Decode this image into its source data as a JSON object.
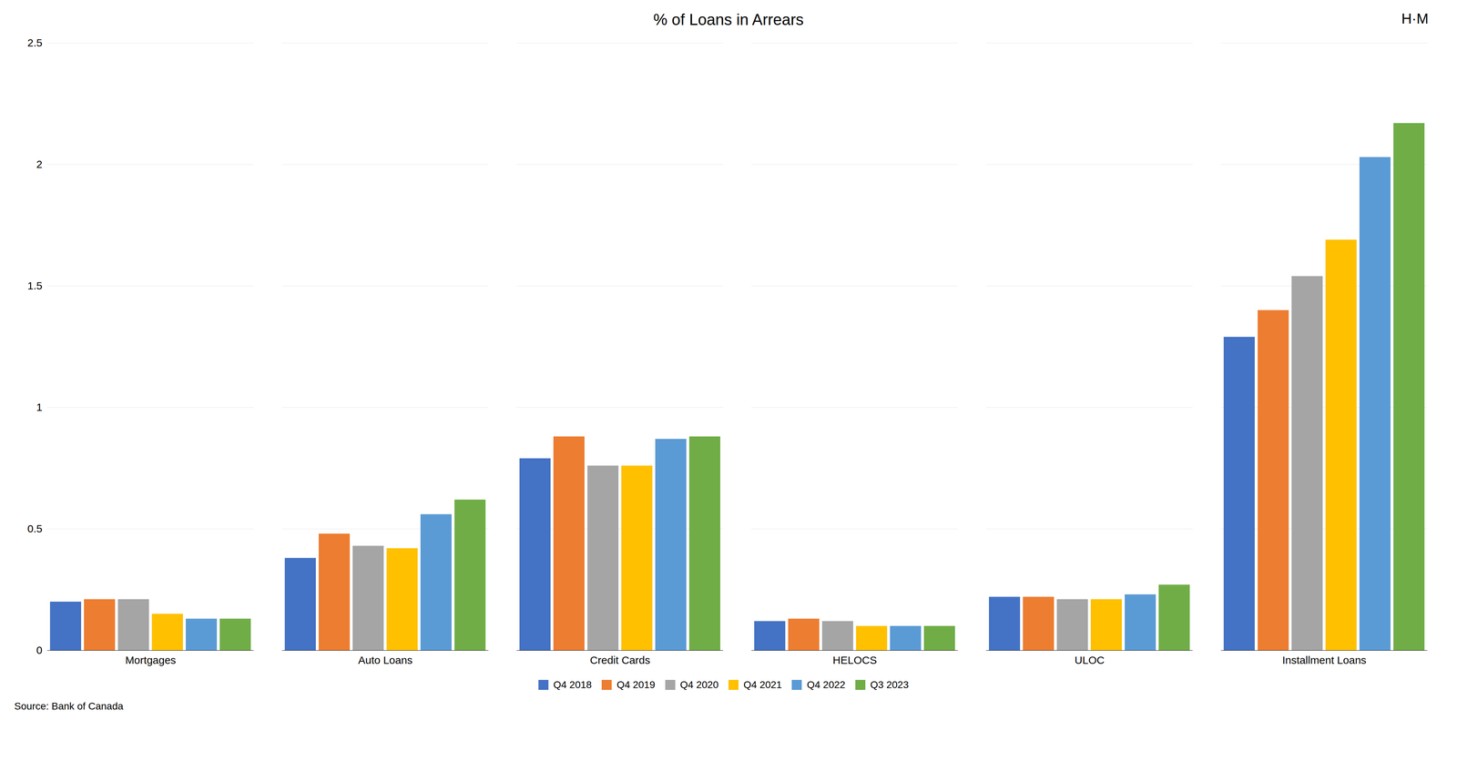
{
  "chart_data": {
    "type": "bar",
    "title": "% of Loans in Arrears",
    "categories": [
      "Mortgages",
      "Auto Loans",
      "Credit Cards",
      "HELOCS",
      "ULOC",
      "Installment Loans"
    ],
    "series": [
      {
        "name": "Q4 2018",
        "color": "#4472C4",
        "values": [
          0.2,
          0.38,
          0.79,
          0.12,
          0.22,
          1.29
        ]
      },
      {
        "name": "Q4 2019",
        "color": "#ED7D31",
        "values": [
          0.21,
          0.48,
          0.88,
          0.13,
          0.22,
          1.4
        ]
      },
      {
        "name": "Q4 2020",
        "color": "#A5A5A5",
        "values": [
          0.21,
          0.43,
          0.76,
          0.12,
          0.21,
          1.54
        ]
      },
      {
        "name": "Q4 2021",
        "color": "#FFC000",
        "values": [
          0.15,
          0.42,
          0.76,
          0.1,
          0.21,
          1.69
        ]
      },
      {
        "name": "Q4 2022",
        "color": "#5B9BD5",
        "values": [
          0.13,
          0.56,
          0.87,
          0.1,
          0.23,
          2.03
        ]
      },
      {
        "name": "Q3 2023",
        "color": "#70AD47",
        "values": [
          0.13,
          0.62,
          0.88,
          0.1,
          0.27,
          2.17
        ]
      }
    ],
    "ylim": [
      0,
      2.5
    ],
    "yticks": [
      0,
      0.5,
      1,
      1.5,
      2,
      2.5
    ],
    "grid": true,
    "legend": "bottom",
    "source": "Source: Bank of Canada",
    "annotations": [
      "H·M"
    ]
  }
}
